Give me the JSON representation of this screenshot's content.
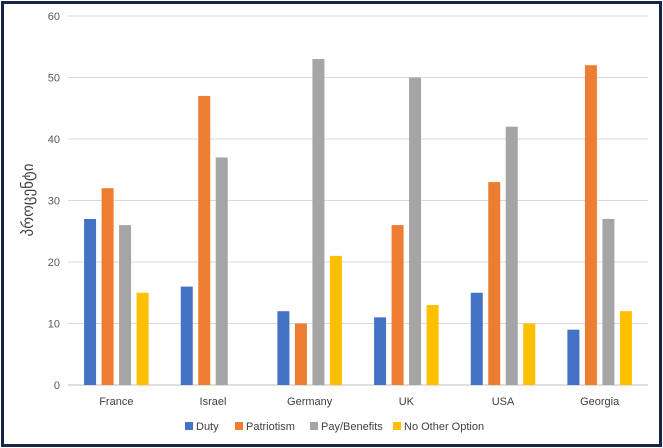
{
  "chart_data": {
    "type": "bar",
    "title": "",
    "xlabel": "",
    "ylabel": "პროცენტი",
    "ylim": [
      0,
      60
    ],
    "yticks": [
      0,
      10,
      20,
      30,
      40,
      50,
      60
    ],
    "grid": "horizontal",
    "legend_position": "bottom",
    "categories": [
      "France",
      "Israel",
      "Germany",
      "UK",
      "USA",
      "Georgia"
    ],
    "series": [
      {
        "name": "Duty",
        "color": "#4472C4",
        "values": [
          27,
          16,
          12,
          11,
          15,
          9
        ]
      },
      {
        "name": "Patriotism",
        "color": "#ED7D31",
        "values": [
          32,
          47,
          10,
          26,
          33,
          52
        ]
      },
      {
        "name": "Pay/Benefits",
        "color": "#A5A5A5",
        "values": [
          26,
          37,
          53,
          50,
          42,
          27
        ]
      },
      {
        "name": "No Other Option",
        "color": "#FFC000",
        "values": [
          15,
          null,
          21,
          13,
          10,
          12
        ]
      }
    ]
  }
}
